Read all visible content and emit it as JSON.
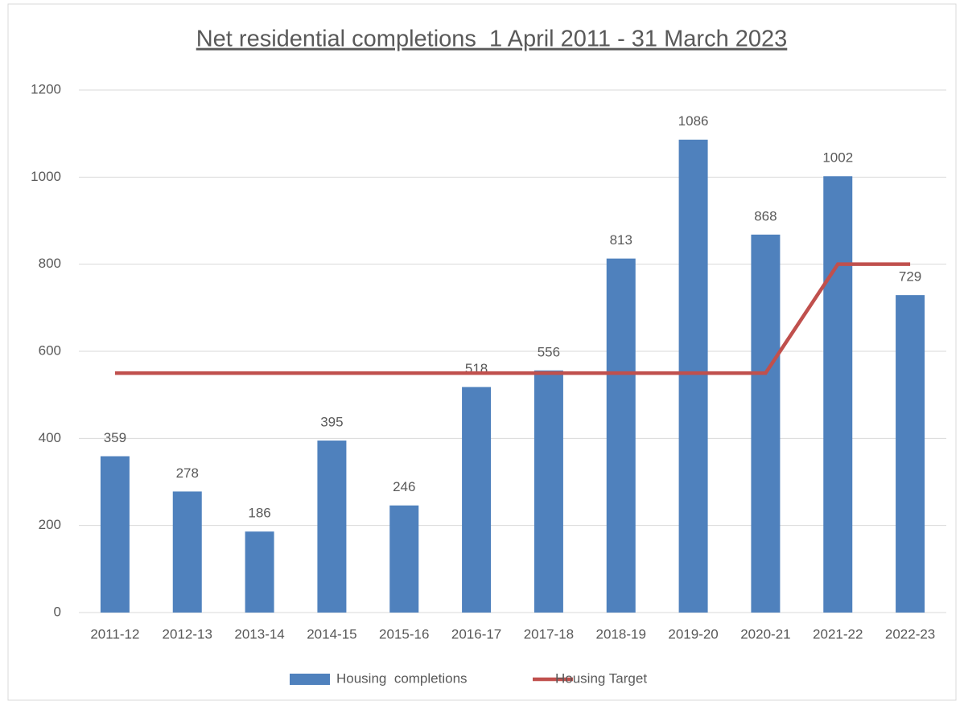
{
  "chart_data": {
    "type": "bar",
    "title": "Net residential completions  1 April 2011 - 31 March 2023",
    "categories": [
      "2011-12",
      "2012-13",
      "2013-14",
      "2014-15",
      "2015-16",
      "2016-17",
      "2017-18",
      "2018-19",
      "2019-20",
      "2020-21",
      "2021-22",
      "2022-23"
    ],
    "series": [
      {
        "name": "Housing  completions",
        "type": "bar",
        "color": "#4f81bd",
        "data_labels": true,
        "values": [
          359,
          278,
          186,
          395,
          246,
          518,
          556,
          813,
          1086,
          868,
          1002,
          729
        ]
      },
      {
        "name": "Housing Target",
        "type": "line",
        "color": "#c0504d",
        "data_labels": false,
        "values": [
          550,
          550,
          550,
          550,
          550,
          550,
          550,
          550,
          550,
          550,
          800,
          800
        ]
      }
    ],
    "ylim": [
      0,
      1200
    ],
    "yticks": [
      0,
      200,
      400,
      600,
      800,
      1000,
      1200
    ],
    "grid": true,
    "legend": "bottom"
  }
}
